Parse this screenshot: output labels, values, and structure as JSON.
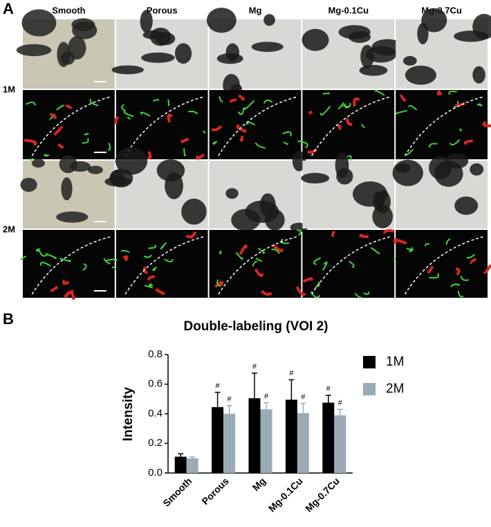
{
  "panel_a": {
    "label": "A",
    "columns": [
      "Smooth",
      "Porous",
      "Mg",
      "Mg-0.1Cu",
      "Mg-0.7Cu"
    ],
    "rows": [
      "1M",
      "2M"
    ]
  },
  "chart_data": {
    "type": "bar",
    "panel_label": "B",
    "title": "Double-labeling (VOI 2)",
    "y_label": "Intensity",
    "categories": [
      "Smooth",
      "Porous",
      "Mg",
      "Mg-0.1Cu",
      "Mg-0.7Cu"
    ],
    "series": [
      {
        "name": "1M",
        "color": "#000000",
        "values": [
          0.11,
          0.445,
          0.505,
          0.495,
          0.475
        ],
        "errors": [
          0.02,
          0.1,
          0.17,
          0.135,
          0.05
        ],
        "significance": [
          null,
          "#",
          "#",
          "#",
          "#"
        ]
      },
      {
        "name": "2M",
        "color": "#9aabb8",
        "values": [
          0.1,
          0.4,
          0.43,
          0.405,
          0.39
        ],
        "errors": [
          0.01,
          0.055,
          0.045,
          0.065,
          0.04
        ],
        "significance": [
          null,
          "#",
          "#",
          "#",
          "#"
        ]
      }
    ],
    "ylim": [
      0,
      0.8
    ],
    "yticks": [
      {
        "value": 0,
        "label": "0.0"
      },
      0.2,
      0.4,
      0.6,
      0.8
    ],
    "legend": "right"
  }
}
